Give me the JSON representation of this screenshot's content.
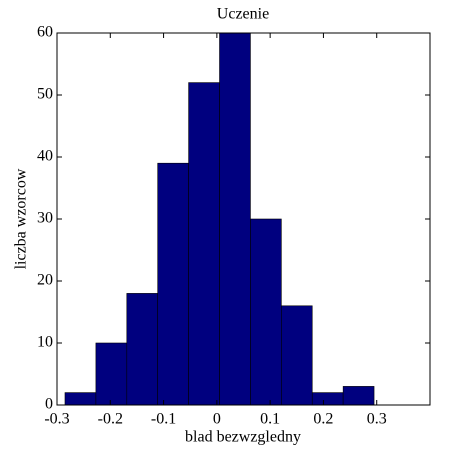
{
  "chart_data": {
    "type": "histogram",
    "title": "Uczenie",
    "x_label": "blad bezwzgledny",
    "y_label": "liczba wzorcow",
    "bins": [
      -0.285,
      -0.227,
      -0.169,
      -0.111,
      -0.053,
      0.005,
      0.063,
      0.121,
      0.179,
      0.237,
      0.295
    ],
    "values": [
      2,
      10,
      18,
      39,
      52,
      60,
      30,
      16,
      2,
      3
    ],
    "color": "#00007f",
    "xlim": [
      -0.3,
      0.4
    ],
    "xticks": [
      -0.3,
      -0.2,
      -0.1,
      0,
      0.1,
      0.2,
      0.3
    ],
    "ylim": [
      0,
      60
    ],
    "yticks": [
      0,
      10,
      20,
      30,
      40,
      50,
      60
    ]
  }
}
